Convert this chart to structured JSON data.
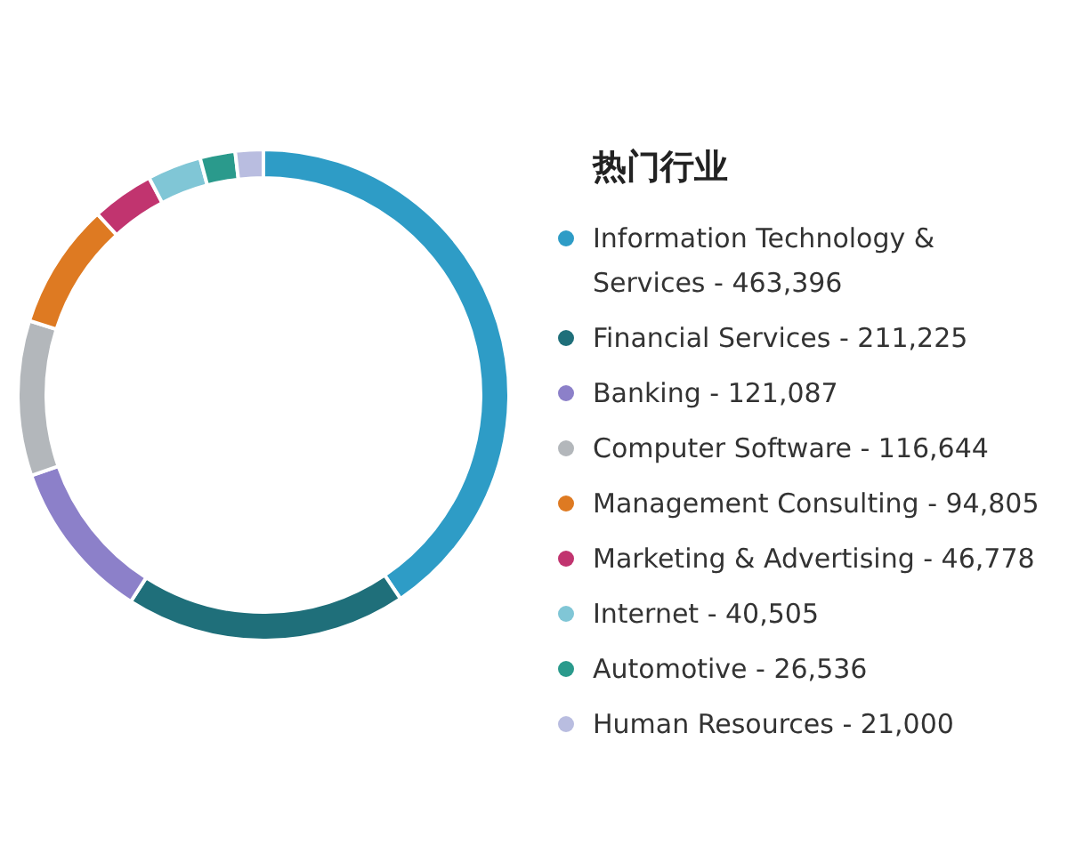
{
  "chart_data": {
    "type": "donut",
    "title": "热门行业",
    "legend": "right",
    "categories": [
      "Information Technology & Services - 463,396",
      "Financial Services - 211,225",
      "Banking - 121,087",
      "Computer Software - 116,644",
      "Management Consulting - 94,805",
      "Marketing & Advertising - 46,778",
      "Internet - 40,505",
      "Automotive - 26,536",
      "Human Resources - 21,000"
    ],
    "values": [
      40.58,
      18.5,
      10.6,
      10.21,
      8.3,
      4.1,
      3.55,
      2.32,
      1.84
    ],
    "colors": [
      "#2e9cc6",
      "#1f6f7a",
      "#8c80c9",
      "#b3b7bb",
      "#de7a22",
      "#c1346f",
      "#80c6d6",
      "#2a9a8c",
      "#b9bde0"
    ]
  }
}
